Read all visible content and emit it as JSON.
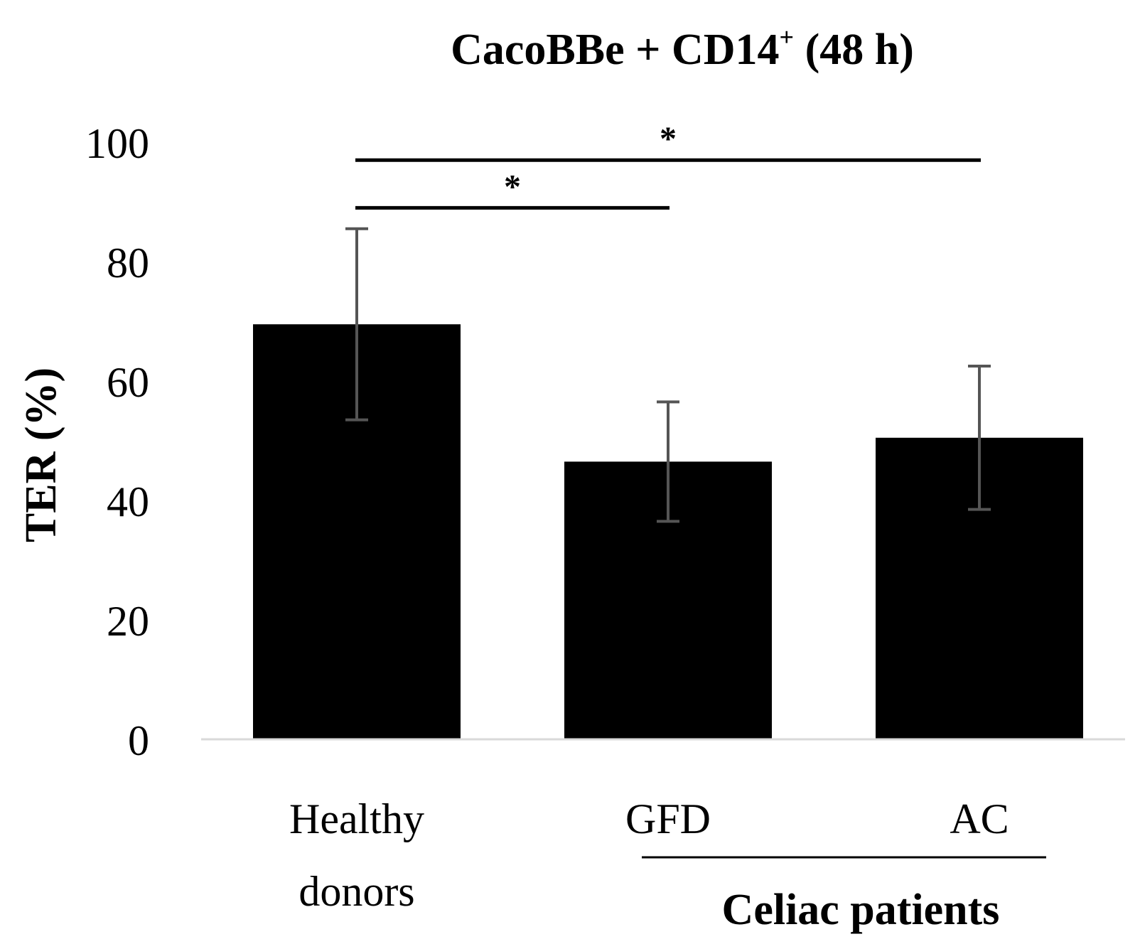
{
  "chart_data": {
    "type": "bar",
    "title_main": "CacoBBe + CD14",
    "title_sup": "+",
    "title_suffix": " (48 h)",
    "ylabel": "TER (%)",
    "xlabel": "",
    "ylim": [
      0,
      100
    ],
    "yticks": [
      0,
      20,
      40,
      60,
      80,
      100
    ],
    "categories": [
      {
        "line1": "Healthy",
        "line2": "donors"
      },
      {
        "line1": "GFD",
        "line2": ""
      },
      {
        "line1": "AC",
        "line2": ""
      }
    ],
    "values": [
      69.5,
      46.5,
      50.5
    ],
    "errors": [
      16,
      10,
      12
    ],
    "group_label": "Celiac patients",
    "significance": [
      {
        "from": 0,
        "to": 1,
        "y": 89,
        "label": "*"
      },
      {
        "from": 0,
        "to": 2,
        "y": 97,
        "label": "*"
      }
    ],
    "colors": {
      "bar": "#000000",
      "error": "#555555",
      "axis": "#d9d9d9"
    }
  }
}
